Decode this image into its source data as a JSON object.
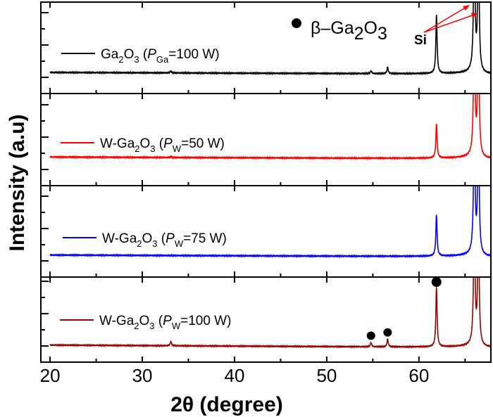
{
  "chart_data": {
    "type": "line",
    "xlabel": "2θ (degree)",
    "ylabel": "Intensity (a.u)",
    "xlim": [
      19,
      67.8
    ],
    "xticks": [
      20,
      30,
      40,
      50,
      60
    ],
    "grid": false,
    "layout": "four vertically stacked panels sharing x axis",
    "annotation": {
      "marker_label": "β–Ga",
      "marker_sub1": "2",
      "marker_mid": "O",
      "marker_sub2": "3",
      "si_label": "Si",
      "si_arrow_color": "#ff0000"
    },
    "series": [
      {
        "name_main": "Ga",
        "name_sub1": "2",
        "name_mid": "O",
        "name_sub2": "3",
        "name_paren": " (",
        "name_P": "P",
        "name_Psub": "Ga",
        "name_end": "=100 W)",
        "color": "#000000",
        "baseline": [
          0.23,
          0.21
        ],
        "peaks": [
          [
            33.1,
            0.02
          ],
          [
            54.8,
            0.03
          ],
          [
            56.6,
            0.07
          ],
          [
            61.9,
            0.64
          ],
          [
            66.0,
            1.6
          ],
          [
            66.45,
            1.5
          ]
        ]
      },
      {
        "name_main": "W-Ga",
        "name_sub1": "2",
        "name_mid": "O",
        "name_sub2": "3",
        "name_paren": " (",
        "name_P": "P",
        "name_Psub": "W",
        "name_end": "=50 W)",
        "color": "#ff0000",
        "baseline": [
          0.31,
          0.29
        ],
        "peaks": [
          [
            33.1,
            0.01
          ],
          [
            61.9,
            0.37
          ],
          [
            66.0,
            1.6
          ],
          [
            66.45,
            1.5
          ]
        ]
      },
      {
        "name_main": "W-Ga",
        "name_sub1": "2",
        "name_mid": "O",
        "name_sub2": "3",
        "name_paren": " (",
        "name_P": "P",
        "name_Psub": "W",
        "name_end": "=75 W)",
        "color": "#0000ff",
        "baseline": [
          0.24,
          0.22
        ],
        "peaks": [
          [
            61.9,
            0.45
          ],
          [
            66.0,
            1.6
          ],
          [
            66.45,
            1.5
          ]
        ]
      },
      {
        "name_main": "W-Ga",
        "name_sub1": "2",
        "name_mid": "O",
        "name_sub2": "3",
        "name_paren": " (",
        "name_P": "P",
        "name_Psub": "W",
        "name_end": "=100 W)",
        "color": "#990000",
        "baseline": [
          0.2,
          0.17
        ],
        "peaks": [
          [
            33.1,
            0.05
          ],
          [
            54.8,
            0.05
          ],
          [
            56.6,
            0.09
          ],
          [
            61.9,
            0.7
          ],
          [
            66.0,
            1.6
          ],
          [
            66.45,
            1.5
          ]
        ],
        "markers": [
          54.8,
          56.6,
          61.9
        ]
      }
    ]
  }
}
